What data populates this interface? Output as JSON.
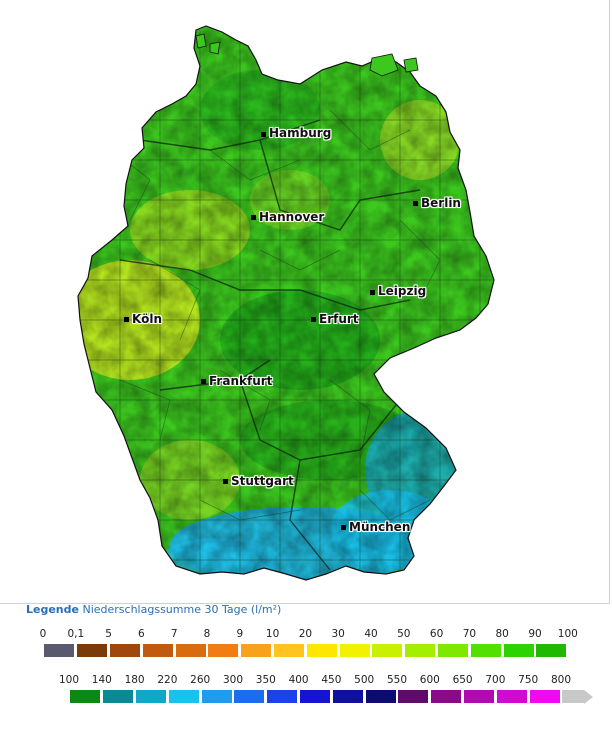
{
  "map": {
    "cities": [
      {
        "name": "Hamburg"
      },
      {
        "name": "Berlin"
      },
      {
        "name": "Hannover"
      },
      {
        "name": "Leipzig"
      },
      {
        "name": "Köln"
      },
      {
        "name": "Erfurt"
      },
      {
        "name": "Frankfurt"
      },
      {
        "name": "Stuttgart"
      },
      {
        "name": "München"
      }
    ]
  },
  "legend": {
    "title": "Legende",
    "subtitle": "Niederschlagssumme 30 Tage",
    "unit": "(l/m²)",
    "row1": {
      "labels": [
        "0",
        "0,1",
        "5",
        "6",
        "7",
        "8",
        "9",
        "10",
        "20",
        "30",
        "40",
        "50",
        "60",
        "70",
        "80",
        "90",
        "100"
      ],
      "colors": [
        "#5a5a6e",
        "#7a3a0a",
        "#a0480c",
        "#c05a0e",
        "#d86c10",
        "#f07c12",
        "#f7a21a",
        "#ffc41e",
        "#fde600",
        "#f2f200",
        "#c8f000",
        "#a4ee00",
        "#7ee800",
        "#52e000",
        "#2ed200",
        "#20b800"
      ]
    },
    "row2": {
      "labels": [
        "100",
        "140",
        "180",
        "220",
        "260",
        "300",
        "350",
        "400",
        "450",
        "500",
        "550",
        "600",
        "650",
        "700",
        "750",
        "800"
      ],
      "colors": [
        "#0a8a10",
        "#0a8a96",
        "#10a8c8",
        "#18c2ee",
        "#1e9cf0",
        "#1c6cf0",
        "#1a44e8",
        "#1414d2",
        "#1010a0",
        "#0c0c70",
        "#600a6c",
        "#8a0a8a",
        "#b00ab0",
        "#d00ad0",
        "#f00af0",
        "#c8c8c8"
      ]
    }
  }
}
